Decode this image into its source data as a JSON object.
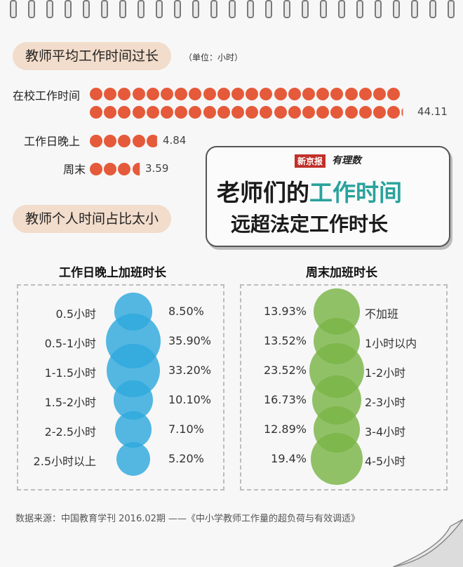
{
  "section1": {
    "title": "教师平均工作时间过长",
    "unit": "（单位：小时）",
    "rows": [
      {
        "label": "在校工作时间",
        "value": "44.11",
        "dots": 44.11
      },
      {
        "label": "工作日晚上",
        "value": "4.84",
        "dots": 4.84
      },
      {
        "label": "周末",
        "value": "3.59",
        "dots": 3.59
      }
    ]
  },
  "headline": {
    "logo_text": "新京报",
    "logo_text2": "有理数",
    "line1_plain": "老师们的",
    "line1_accent": "工作时间",
    "line2": "远超法定工作时长"
  },
  "section2": {
    "title": "教师个人时间占比太小"
  },
  "colors": {
    "dots": "#e55a3a",
    "blue": "#2ea8dd",
    "green": "#7ab547",
    "accent": "#2aa29c"
  },
  "chart_data": [
    {
      "type": "bubble",
      "title": "工作日晚上加班时长",
      "categories": [
        "0.5小时",
        "0.5-1小时",
        "1-1.5小时",
        "1.5-2小时",
        "2-2.5小时",
        "2.5小时以上"
      ],
      "labels": [
        "8.50%",
        "35.90%",
        "33.20%",
        "10.10%",
        "7.10%",
        "5.20%"
      ],
      "values": [
        8.5,
        35.9,
        33.2,
        10.1,
        7.1,
        5.2
      ]
    },
    {
      "type": "bubble",
      "title": "周末加班时长",
      "categories": [
        "不加班",
        "1小时以内",
        "1-2小时",
        "2-3小时",
        "3-4小时",
        "4-5小时"
      ],
      "labels": [
        "13.93%",
        "13.52%",
        "23.52%",
        "16.73%",
        "12.89%",
        "19.4%"
      ],
      "values": [
        13.93,
        13.52,
        23.52,
        16.73,
        12.89,
        19.4
      ]
    }
  ],
  "source": "数据来源：中国教育学刊 2016.02期 ——《中小学教师工作量的超负荷与有效调适》"
}
